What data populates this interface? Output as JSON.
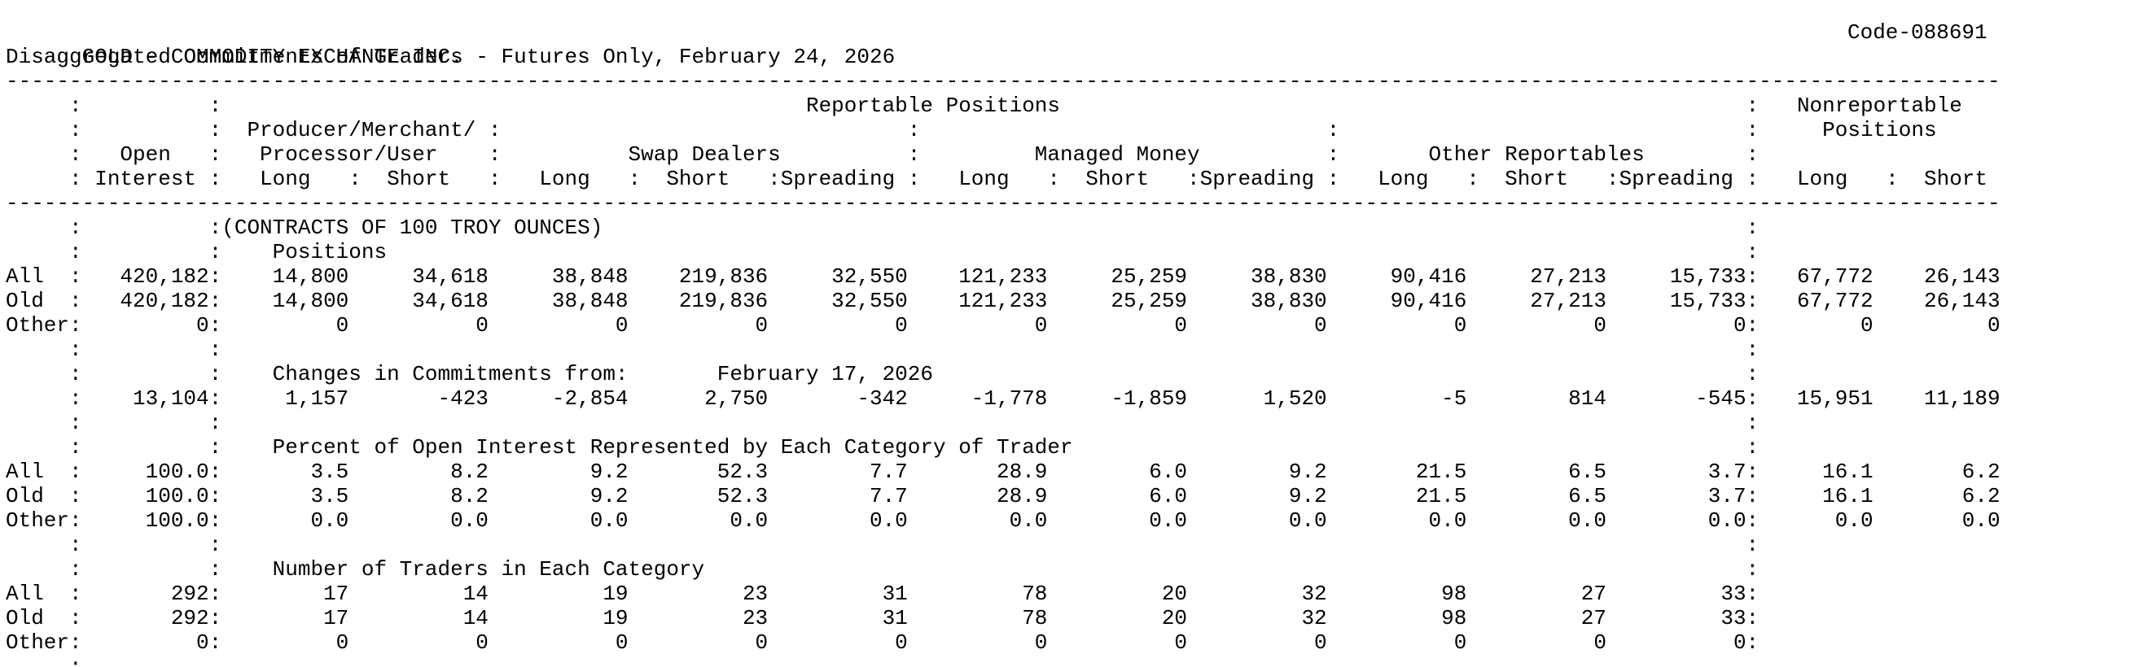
{
  "header": {
    "title": "GOLD - COMMODITY EXCHANGE INC.",
    "code": "Code-088691",
    "subtitle": "Disaggregated Commitments of Traders - Futures Only, February 24, 2026"
  },
  "report": {
    "rule": "-------------------------------------------------------------------------------------------------------------------------------------------------------------",
    "column_headers": [
      "     :          :                                              Reportable Positions                                                      :   Nonreportable",
      "     :          :  Producer/Merchant/ :                                :                                :                                :     Positions",
      "     :   Open   :   Processor/User    :          Swap Dealers          :         Managed Money          :       Other Reportables        :",
      "     : Interest :   Long   :  Short   :   Long   :  Short   :Spreading :   Long   :  Short   :Spreading :   Long   :  Short   :Spreading :   Long   :  Short"
    ],
    "body": [
      "     :          :(CONTRACTS OF 100 TROY OUNCES)                                                                                          :",
      "     :          :    Positions                                                                                                           :",
      "All  :   420,182:    14,800     34,618     38,848    219,836     32,550    121,233     25,259     38,830     90,416     27,213     15,733:   67,772    26,143",
      "Old  :   420,182:    14,800     34,618     38,848    219,836     32,550    121,233     25,259     38,830     90,416     27,213     15,733:   67,772    26,143",
      "Other:         0:         0          0          0          0          0          0          0          0          0          0          0:        0         0",
      "     :          :                                                                                                                        :",
      "     :          :    Changes in Commitments from:       February 17, 2026                                                                :",
      "     :    13,104:     1,157       -423     -2,854      2,750       -342     -1,778     -1,859      1,520         -5        814       -545:   15,951    11,189",
      "     :          :                                                                                                                        :",
      "     :          :    Percent of Open Interest Represented by Each Category of Trader                                                     :",
      "All  :     100.0:       3.5        8.2        9.2       52.3        7.7       28.9        6.0        9.2       21.5        6.5        3.7:     16.1       6.2",
      "Old  :     100.0:       3.5        8.2        9.2       52.3        7.7       28.9        6.0        9.2       21.5        6.5        3.7:     16.1       6.2",
      "Other:     100.0:       0.0        0.0        0.0        0.0        0.0        0.0        0.0        0.0        0.0        0.0        0.0:      0.0       0.0",
      "     :          :                                                                                                                        :",
      "     :          :    Number of Traders in Each Category                                                                                  :",
      "All  :       292:        17         14         19         23         31         78         20         32         98         27         33:",
      "Old  :       292:        17         14         19         23         31         78         20         32         98         27         33:",
      "Other:         0:         0          0          0          0          0          0          0          0          0          0          0:",
      "     :"
    ]
  }
}
